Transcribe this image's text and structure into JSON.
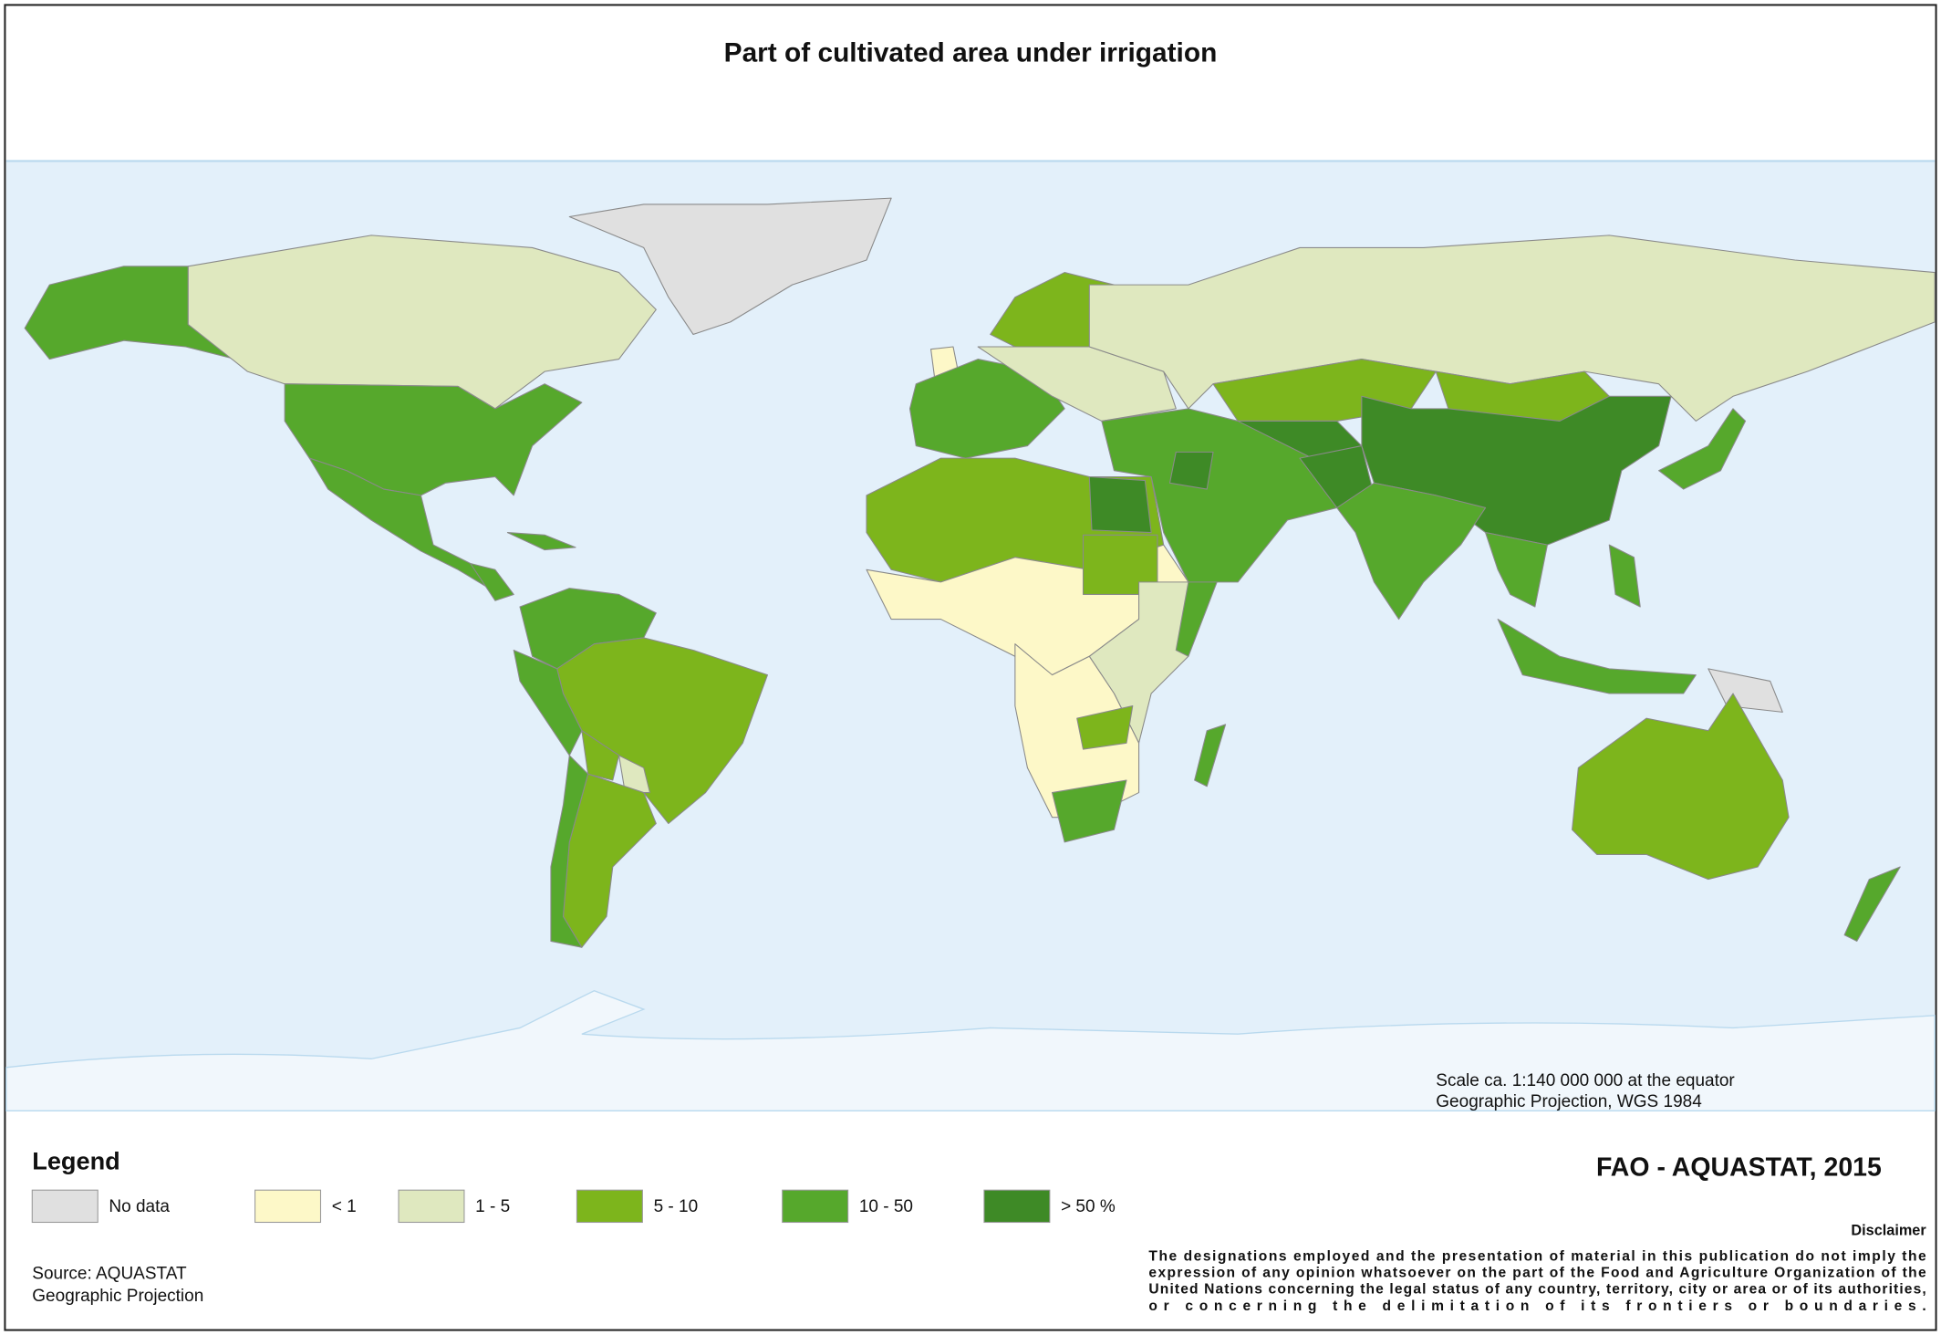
{
  "title": "Part of cultivated area under irrigation",
  "map_notes": {
    "scale": "Scale ca. 1:140 000 000 at the equator",
    "projection": "Geographic Projection, WGS 1984"
  },
  "legend": {
    "title": "Legend",
    "items": [
      {
        "label": "No data",
        "color": "#e0e0e0"
      },
      {
        "label": "< 1",
        "color": "#fdf8c8"
      },
      {
        "label": "1 - 5",
        "color": "#dfe8bf"
      },
      {
        "label": "5 - 10",
        "color": "#7db51c"
      },
      {
        "label": "10 - 50",
        "color": "#56a82c"
      },
      {
        "label": "> 50 %",
        "color": "#3e8a26"
      }
    ]
  },
  "credit": "FAO - AQUASTAT, 2015",
  "disclaimer": {
    "title": "Disclaimer",
    "lines": [
      "The designations employed and the presentation  of material in this publication do not imply the",
      "expression of any opinion whatsoever on the part of the Food and Agriculture Organization of the",
      "United Nations concerning the legal status of any country, territory, city or area or of its authorities,",
      "or  concerning  the  delimitation  of  its  frontiers  or  boundaries."
    ]
  },
  "source": [
    "Source: AQUASTAT",
    "Geographic Projection"
  ]
}
